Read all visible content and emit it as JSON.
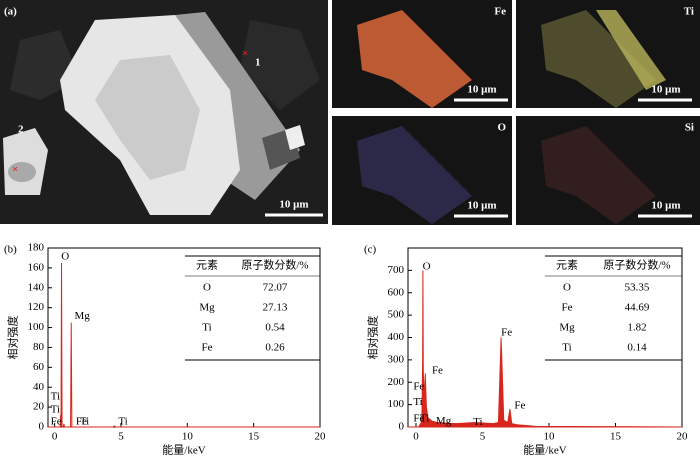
{
  "image_panel": {
    "label": "(a)",
    "markers": [
      "1",
      "2"
    ],
    "scale_bar": "10 μm"
  },
  "maps": [
    {
      "element": "Fe",
      "scale_bar": "10 μm",
      "color": "#d9663a"
    },
    {
      "element": "Ti",
      "scale_bar": "10 μm",
      "color": "#b9b45a"
    },
    {
      "element": "O",
      "scale_bar": "10 μm",
      "color": "#5a4fa8"
    },
    {
      "element": "Si",
      "scale_bar": "10 μm",
      "color": "#6a3030"
    }
  ],
  "chart_data": [
    {
      "type": "area",
      "label": "(b)",
      "x_label": "能量/keV",
      "y_label": "相对强度",
      "color": "#d8261c",
      "fill": false,
      "xlim": [
        -0.5,
        20
      ],
      "xticks": [
        0,
        5,
        10,
        15,
        20
      ],
      "ylim": [
        0,
        180
      ],
      "yticks": [
        0,
        20,
        40,
        60,
        80,
        100,
        120,
        140,
        160,
        180
      ],
      "x": [
        -0.5,
        0.3,
        0.42,
        0.45,
        0.48,
        0.52,
        0.56,
        0.65,
        0.7,
        0.75,
        1.1,
        1.2,
        1.25,
        1.3,
        1.4,
        4.4,
        4.5,
        4.6,
        20
      ],
      "values": [
        0,
        0,
        0,
        12,
        0,
        165,
        0,
        0,
        3,
        0,
        0,
        0,
        105,
        0,
        0,
        0,
        1,
        0,
        0
      ],
      "annotations": [
        {
          "text": "O",
          "x": 0.5,
          "y": 171
        },
        {
          "text": "Mg",
          "x": 1.5,
          "y": 111
        },
        {
          "text": "Ti",
          "x": -0.3,
          "y": 30
        },
        {
          "text": "Ti",
          "x": -0.3,
          "y": 17
        },
        {
          "text": "Fe",
          "x": -0.3,
          "y": 5
        },
        {
          "text": "Fe",
          "x": 1.6,
          "y": 5
        },
        {
          "text": "Ti",
          "x": 1.9,
          "y": 5
        },
        {
          "text": "Ti",
          "x": 4.8,
          "y": 5
        }
      ],
      "table": {
        "header": [
          "元素",
          "原子数分数/%"
        ],
        "rows": [
          [
            "O",
            "72.07"
          ],
          [
            "Mg",
            "27.13"
          ],
          [
            "Ti",
            "0.54"
          ],
          [
            "Fe",
            "0.26"
          ]
        ]
      }
    },
    {
      "type": "area",
      "label": "(c)",
      "x_label": "能量/keV",
      "y_label": "相对强度",
      "color": "#d8261c",
      "fill": true,
      "xlim": [
        -0.6,
        20
      ],
      "xticks": [
        0,
        5,
        10,
        15,
        20
      ],
      "ylim": [
        0,
        800
      ],
      "yticks": [
        0,
        100,
        200,
        300,
        400,
        500,
        600,
        700
      ],
      "x": [
        -0.6,
        0.2,
        0.4,
        0.45,
        0.5,
        0.52,
        0.55,
        0.62,
        0.7,
        0.78,
        0.9,
        1.25,
        1.6,
        3,
        4.5,
        5.8,
        6.2,
        6.4,
        6.6,
        6.9,
        7.06,
        7.2,
        7.6,
        9,
        20
      ],
      "values": [
        0,
        0,
        20,
        60,
        300,
        700,
        250,
        120,
        240,
        90,
        40,
        25,
        20,
        15,
        20,
        15,
        20,
        400,
        30,
        20,
        80,
        15,
        10,
        3,
        0
      ],
      "annotations": [
        {
          "text": "O",
          "x": 0.5,
          "y": 715
        },
        {
          "text": "Fe",
          "x": 1.2,
          "y": 250
        },
        {
          "text": "Fe",
          "x": -0.2,
          "y": 180
        },
        {
          "text": "Ti",
          "x": -0.2,
          "y": 110
        },
        {
          "text": "Fe",
          "x": -0.2,
          "y": 35
        },
        {
          "text": "Ti",
          "x": 0.3,
          "y": 35
        },
        {
          "text": "Mg",
          "x": 1.5,
          "y": 25
        },
        {
          "text": "Ti",
          "x": 4.3,
          "y": 20
        },
        {
          "text": "Fe",
          "x": 6.4,
          "y": 420
        },
        {
          "text": "Fe",
          "x": 7.4,
          "y": 95
        }
      ],
      "table": {
        "header": [
          "元素",
          "原子数分数/%"
        ],
        "rows": [
          [
            "O",
            "53.35"
          ],
          [
            "Fe",
            "44.69"
          ],
          [
            "Mg",
            "1.82"
          ],
          [
            "Ti",
            "0.14"
          ]
        ]
      }
    }
  ]
}
